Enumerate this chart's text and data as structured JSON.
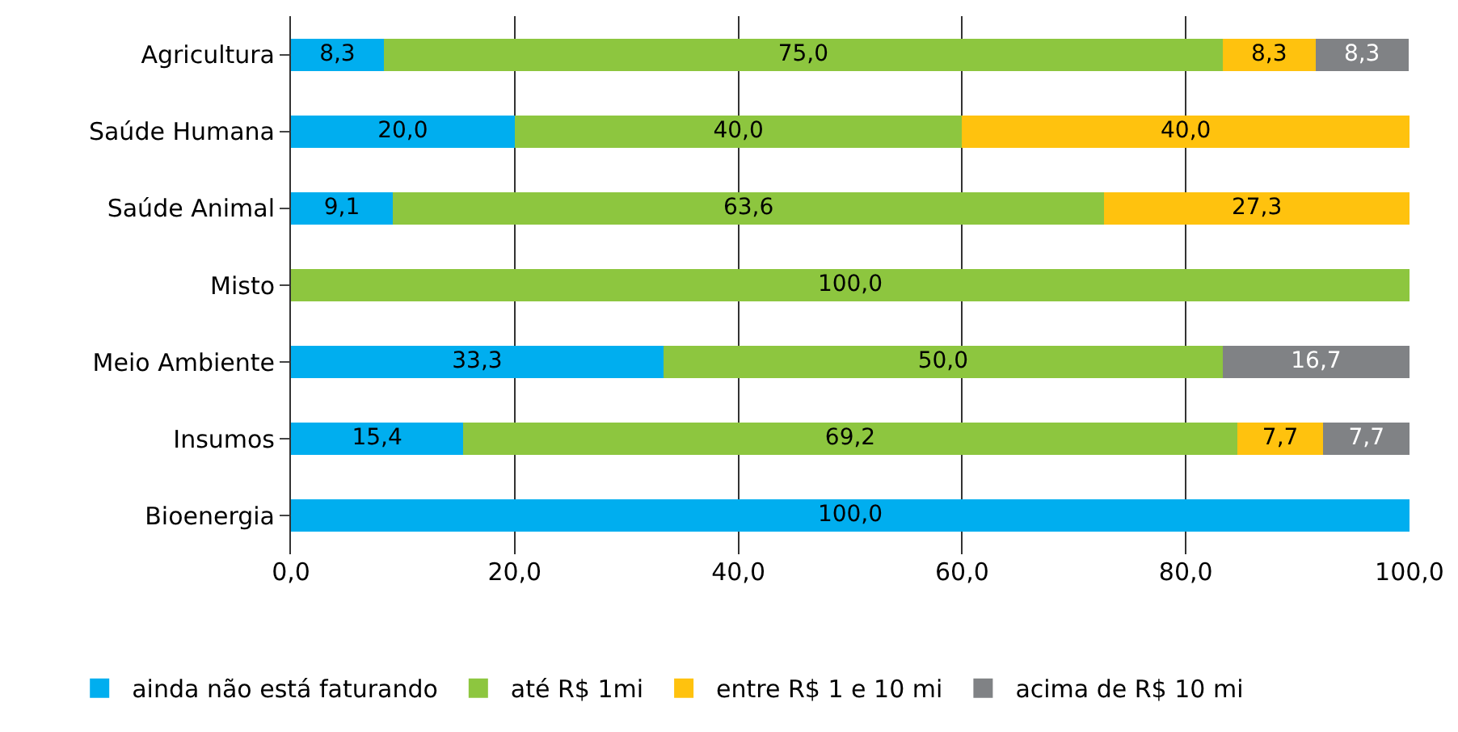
{
  "chart_data": {
    "type": "bar",
    "orientation": "horizontal",
    "stacked": true,
    "categories": [
      "Agricultura",
      "Saúde Humana",
      "Saúde Animal",
      "Misto",
      "Meio Ambiente",
      "Insumos",
      "Bioenergia"
    ],
    "series": [
      {
        "name": "ainda não está faturando",
        "color": "#00aeef",
        "values": [
          8.3,
          20.0,
          9.1,
          null,
          33.3,
          15.4,
          100.0
        ],
        "value_labels": [
          "8,3",
          "20,0",
          "9,1",
          null,
          "33,3",
          "15,4",
          "100,0"
        ]
      },
      {
        "name": "até R$ 1mi",
        "color": "#8dc63f",
        "values": [
          75.0,
          40.0,
          63.6,
          100.0,
          50.0,
          69.2,
          null
        ],
        "value_labels": [
          "75,0",
          "40,0",
          "63,6",
          "100,0",
          "50,0",
          "69,2",
          null
        ]
      },
      {
        "name": "entre R$ 1 e 10 mi",
        "color": "#ffc20e",
        "values": [
          8.3,
          40.0,
          27.3,
          null,
          null,
          7.7,
          null
        ],
        "value_labels": [
          "8,3",
          "40,0",
          "27,3",
          null,
          null,
          "7,7",
          null
        ]
      },
      {
        "name": "acima de R$ 10 mi",
        "color": "#808285",
        "values": [
          8.3,
          null,
          null,
          null,
          16.7,
          7.7,
          null
        ],
        "value_labels": [
          "8,3",
          null,
          null,
          null,
          "16,7",
          "7,7",
          null
        ]
      }
    ],
    "xlim": [
      0,
      100
    ],
    "xticks": [
      {
        "value": 0,
        "label": "0,0"
      },
      {
        "value": 20,
        "label": "20,0"
      },
      {
        "value": 40,
        "label": "40,0"
      },
      {
        "value": 60,
        "label": "60,0"
      },
      {
        "value": 80,
        "label": "80,0"
      },
      {
        "value": 100,
        "label": "100,0"
      }
    ],
    "grid": "x",
    "legend": "bottom"
  }
}
